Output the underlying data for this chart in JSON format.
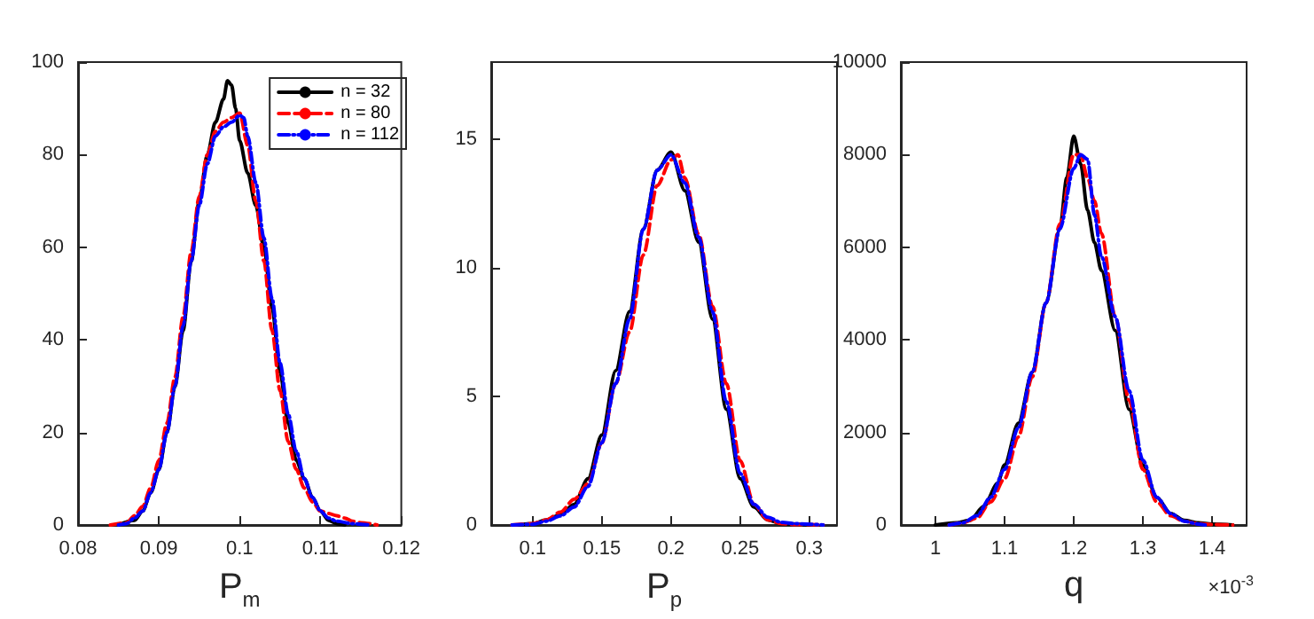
{
  "chart_data": [
    {
      "type": "line",
      "xlabel": "P$_{m}$",
      "xlim": [
        0.08,
        0.12
      ],
      "xticks": [
        0.08,
        0.09,
        0.1,
        0.11,
        0.12
      ],
      "ylim": [
        0,
        100
      ],
      "yticks": [
        0,
        20,
        40,
        60,
        80,
        100
      ],
      "grid": false,
      "legend": "top right",
      "series": [
        {
          "name": "n = 32",
          "color": "#000000",
          "line_style": "solid",
          "x": [
            0.085,
            0.087,
            0.088,
            0.089,
            0.09,
            0.091,
            0.092,
            0.093,
            0.094,
            0.095,
            0.096,
            0.097,
            0.098,
            0.0985,
            0.099,
            0.0995,
            0.1,
            0.101,
            0.102,
            0.103,
            0.104,
            0.105,
            0.106,
            0.107,
            0.108,
            0.109,
            0.11,
            0.111,
            0.112,
            0.113
          ],
          "values": [
            0,
            1,
            3,
            7,
            12,
            20,
            30,
            42,
            57,
            70,
            80,
            87,
            92,
            96,
            95,
            90,
            83,
            76,
            69,
            60,
            47,
            33,
            22,
            14,
            10,
            6,
            3,
            1,
            0.3,
            0
          ]
        },
        {
          "name": "n = 80",
          "color": "#ff0000",
          "line_style": "dashed",
          "x": [
            0.084,
            0.086,
            0.087,
            0.088,
            0.089,
            0.09,
            0.091,
            0.092,
            0.093,
            0.094,
            0.095,
            0.096,
            0.097,
            0.098,
            0.099,
            0.1,
            0.101,
            0.102,
            0.103,
            0.104,
            0.105,
            0.106,
            0.107,
            0.108,
            0.109,
            0.11,
            0.111,
            0.112,
            0.113,
            0.114,
            0.115,
            0.117
          ],
          "values": [
            0,
            0.5,
            2,
            4,
            8,
            14,
            22,
            32,
            45,
            59,
            71,
            80,
            85,
            87,
            88,
            89,
            82,
            70,
            57,
            42,
            29,
            18,
            12,
            8,
            5,
            3,
            2.5,
            2,
            1.5,
            0.8,
            0.5,
            0
          ]
        },
        {
          "name": "n = 112",
          "color": "#0000ff",
          "line_style": "dashdot",
          "x": [
            0.085,
            0.086,
            0.087,
            0.088,
            0.089,
            0.09,
            0.091,
            0.092,
            0.093,
            0.094,
            0.095,
            0.096,
            0.097,
            0.098,
            0.099,
            0.1,
            0.1005,
            0.101,
            0.102,
            0.103,
            0.104,
            0.105,
            0.106,
            0.107,
            0.108,
            0.109,
            0.11,
            0.111,
            0.112,
            0.114,
            0.116
          ],
          "values": [
            0,
            0.3,
            1.5,
            3,
            7,
            12,
            20,
            30,
            43,
            57,
            69,
            78,
            84,
            86,
            87,
            88.5,
            88,
            84,
            74,
            62,
            49,
            35,
            24,
            16,
            10,
            6,
            3,
            1.5,
            0.8,
            0.3,
            0
          ]
        }
      ]
    },
    {
      "type": "line",
      "xlabel": "P$_{p}$",
      "xlim": [
        0.07,
        0.32
      ],
      "xticks": [
        0.1,
        0.15,
        0.2,
        0.25,
        0.3
      ],
      "ylim": [
        0,
        18
      ],
      "yticks": [
        0,
        5,
        10,
        15
      ],
      "grid": false,
      "series": [
        {
          "color": "#000000",
          "line_style": "solid",
          "x": [
            0.09,
            0.1,
            0.11,
            0.12,
            0.13,
            0.14,
            0.15,
            0.16,
            0.17,
            0.18,
            0.19,
            0.2,
            0.21,
            0.22,
            0.23,
            0.24,
            0.25,
            0.26,
            0.27,
            0.28,
            0.3
          ],
          "values": [
            0,
            0.05,
            0.2,
            0.4,
            0.8,
            1.8,
            3.5,
            6,
            8.3,
            11.5,
            13.8,
            14.5,
            13,
            11,
            8,
            4.5,
            1.8,
            0.7,
            0.2,
            0.05,
            0
          ]
        },
        {
          "color": "#ff0000",
          "line_style": "dashed",
          "x": [
            0.085,
            0.1,
            0.11,
            0.12,
            0.13,
            0.14,
            0.15,
            0.16,
            0.17,
            0.18,
            0.19,
            0.2,
            0.205,
            0.21,
            0.22,
            0.23,
            0.24,
            0.25,
            0.26,
            0.27,
            0.28,
            0.29,
            0.31
          ],
          "values": [
            0,
            0.05,
            0.2,
            0.5,
            1,
            1.6,
            3.2,
            5.5,
            7.5,
            10.5,
            13.2,
            14.2,
            14.4,
            13.5,
            11.3,
            8.5,
            5.5,
            2.5,
            0.8,
            0.2,
            0.05,
            0.02,
            0
          ]
        },
        {
          "color": "#0000ff",
          "line_style": "dashdot",
          "x": [
            0.085,
            0.1,
            0.11,
            0.12,
            0.13,
            0.14,
            0.15,
            0.16,
            0.17,
            0.18,
            0.19,
            0.2,
            0.21,
            0.22,
            0.23,
            0.24,
            0.25,
            0.26,
            0.27,
            0.28,
            0.29,
            0.31
          ],
          "values": [
            0,
            0.03,
            0.15,
            0.35,
            0.7,
            1.5,
            3.2,
            5.5,
            8,
            11.5,
            13.8,
            14.4,
            13.3,
            11.2,
            8.3,
            4.8,
            2,
            0.8,
            0.3,
            0.1,
            0.05,
            0
          ]
        }
      ]
    },
    {
      "type": "line",
      "xlabel": "q",
      "annotations": [
        "×10$^{-3}$"
      ],
      "xlim": [
        0.95,
        1.45
      ],
      "xticks": [
        1,
        1.1,
        1.2,
        1.3,
        1.4
      ],
      "ylim": [
        0,
        10000
      ],
      "yticks": [
        0,
        2000,
        4000,
        6000,
        8000,
        10000
      ],
      "grid": false,
      "series": [
        {
          "color": "#000000",
          "line_style": "solid",
          "x": [
            1.0,
            1.03,
            1.05,
            1.07,
            1.09,
            1.1,
            1.12,
            1.14,
            1.16,
            1.18,
            1.19,
            1.2,
            1.21,
            1.22,
            1.23,
            1.24,
            1.26,
            1.28,
            1.3,
            1.32,
            1.34,
            1.36,
            1.38,
            1.4,
            1.43
          ],
          "values": [
            0,
            50,
            100,
            400,
            900,
            1300,
            2200,
            3300,
            4800,
            6400,
            7500,
            8400,
            7800,
            6800,
            6100,
            5500,
            4200,
            2500,
            1300,
            600,
            250,
            100,
            50,
            20,
            0
          ]
        },
        {
          "color": "#ff0000",
          "line_style": "dashed",
          "x": [
            1.02,
            1.04,
            1.06,
            1.08,
            1.1,
            1.12,
            1.14,
            1.16,
            1.18,
            1.2,
            1.21,
            1.22,
            1.23,
            1.24,
            1.26,
            1.28,
            1.3,
            1.32,
            1.34,
            1.36,
            1.38,
            1.4,
            1.43
          ],
          "values": [
            0,
            50,
            150,
            500,
            1000,
            1900,
            3200,
            4800,
            6500,
            8000,
            8000,
            7500,
            7000,
            6300,
            4500,
            2700,
            1200,
            500,
            200,
            80,
            30,
            10,
            0
          ]
        },
        {
          "color": "#0000ff",
          "line_style": "dashdot",
          "x": [
            1.02,
            1.04,
            1.06,
            1.08,
            1.1,
            1.12,
            1.14,
            1.16,
            1.18,
            1.2,
            1.21,
            1.22,
            1.23,
            1.24,
            1.26,
            1.28,
            1.3,
            1.32,
            1.34,
            1.36,
            1.38,
            1.39
          ],
          "values": [
            0,
            50,
            200,
            600,
            1200,
            2100,
            3300,
            4800,
            6400,
            7700,
            8000,
            7900,
            6700,
            5800,
            4500,
            2900,
            1400,
            600,
            250,
            80,
            20,
            0
          ]
        }
      ]
    }
  ]
}
